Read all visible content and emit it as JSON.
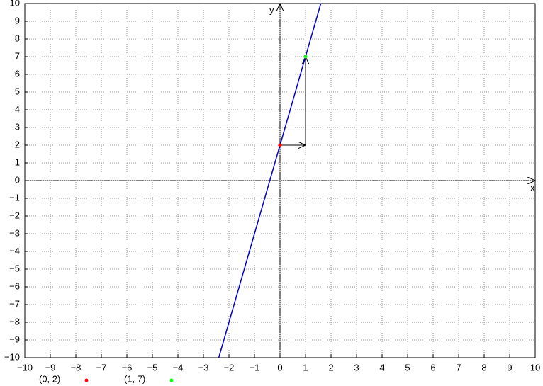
{
  "chart_data": {
    "type": "line",
    "x_label": "x",
    "y_label": "y",
    "xlim": [
      -10,
      10
    ],
    "ylim": [
      -10,
      10
    ],
    "xticks": [
      {
        "value": -10,
        "label": "−10"
      },
      {
        "value": -9,
        "label": "−9"
      },
      {
        "value": -8,
        "label": "−8"
      },
      {
        "value": -7,
        "label": "−7"
      },
      {
        "value": -6,
        "label": "−6"
      },
      {
        "value": -5,
        "label": "−5"
      },
      {
        "value": -4,
        "label": "−4"
      },
      {
        "value": -3,
        "label": "−3"
      },
      {
        "value": -2,
        "label": "−2"
      },
      {
        "value": -1,
        "label": "−1"
      },
      0,
      1,
      2,
      3,
      4,
      5,
      6,
      7,
      8,
      9,
      10
    ],
    "yticks": [
      {
        "value": -10,
        "label": "−10"
      },
      {
        "value": -9,
        "label": "−9"
      },
      {
        "value": -8,
        "label": "−8"
      },
      {
        "value": -7,
        "label": "−7"
      },
      {
        "value": -6,
        "label": "−6"
      },
      {
        "value": -5,
        "label": "−5"
      },
      {
        "value": -4,
        "label": "−4"
      },
      {
        "value": -3,
        "label": "−3"
      },
      {
        "value": -2,
        "label": "−2"
      },
      {
        "value": -1,
        "label": "−1"
      },
      0,
      1,
      2,
      3,
      4,
      5,
      6,
      7,
      8,
      9,
      10
    ],
    "grid": true,
    "series": [
      {
        "color": "#0000cc",
        "x": [
          -2.4,
          1.6
        ],
        "values": [
          -10,
          10
        ]
      },
      {
        "name": "(0, 2)",
        "color": "#ff0000",
        "x": [
          0
        ],
        "values": [
          2
        ]
      },
      {
        "name": "(1, 7)",
        "color": "#00ff00",
        "x": [
          1
        ],
        "values": [
          7
        ]
      }
    ],
    "arrows": [
      {
        "x": [
          0,
          1
        ],
        "y": [
          2,
          2
        ]
      },
      {
        "x": [
          1,
          1
        ],
        "y": [
          2,
          7
        ]
      }
    ]
  }
}
